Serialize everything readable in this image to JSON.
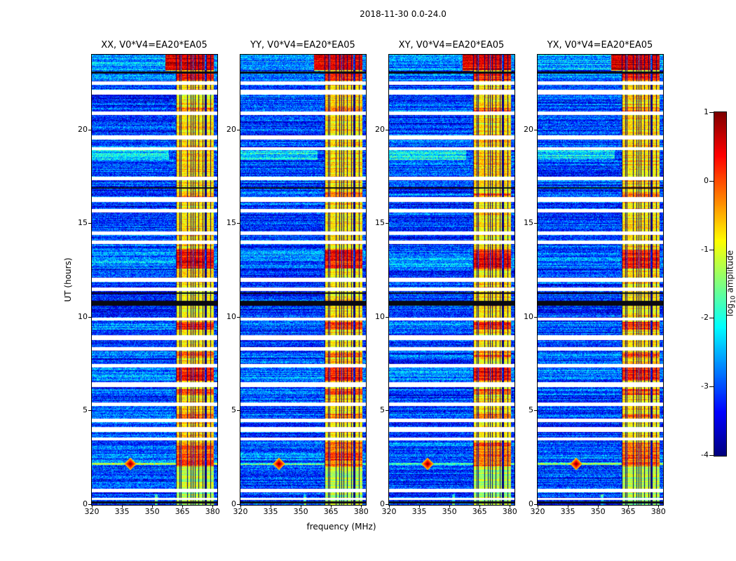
{
  "figure_title": "2018-11-30 0.0-24.0",
  "chart_data": {
    "type": "heatmap",
    "title": "2018-11-30 0.0-24.0",
    "xlabel": "frequency (MHz)",
    "ylabel": "UT (hours)",
    "x_range": [
      320,
      382
    ],
    "y_range": [
      0,
      24
    ],
    "x_ticks": [
      320,
      335,
      350,
      365,
      380
    ],
    "y_ticks": [
      0,
      5,
      10,
      15,
      20
    ],
    "grid": false,
    "colormap": "jet",
    "colorbar": {
      "label_prefix": "log",
      "label_sub": "10",
      "label_suffix": " amplitude",
      "ticks": [
        1,
        0,
        -1,
        -2,
        -3,
        -4
      ],
      "range": [
        -4,
        1
      ]
    },
    "panels": [
      {
        "label": "XX, V0*V4=EA20*EA05",
        "seed": 11
      },
      {
        "label": "YY, V0*V4=EA20*EA05",
        "seed": 37
      },
      {
        "label": "XY, V0*V4=EA20*EA05",
        "seed": 59
      },
      {
        "label": "YX, V0*V4=EA20*EA05",
        "seed": 83
      }
    ],
    "features": {
      "background_level": -3.1,
      "noise_sigma": 0.6,
      "row_noise": 0.5,
      "rfi_band": {
        "f_start": 361.5,
        "f_end": 380.5,
        "level": -0.75,
        "grid_spacing": 1.9,
        "grid_width": 0.32,
        "grid_depth": 5.0,
        "dark_lines": [
          364.3,
          370.2,
          376.2
        ],
        "low_time_cut": 2.0
      },
      "band_extend": {
        "t0": 23.15,
        "t1": 24.0,
        "f_start": 356.5
      },
      "bright_rows": [
        [
          23.2,
          24.0,
          1.2
        ],
        [
          22.65,
          23.0,
          0.9
        ],
        [
          20.95,
          21.2,
          0.5
        ],
        [
          16.35,
          16.65,
          0.5
        ],
        [
          12.6,
          13.6,
          1.0
        ],
        [
          9.35,
          9.75,
          0.85
        ],
        [
          7.9,
          8.15,
          0.5
        ],
        [
          6.6,
          7.35,
          0.9
        ],
        [
          5.85,
          6.15,
          0.7
        ],
        [
          4.55,
          4.85,
          0.45
        ],
        [
          2.05,
          3.3,
          0.6
        ]
      ],
      "flagged_times": [
        [
          22.5,
          0.09
        ],
        [
          22.0,
          0.13
        ],
        [
          20.9,
          0.09
        ],
        [
          19.6,
          0.13
        ],
        [
          19.0,
          0.09
        ],
        [
          17.4,
          0.09
        ],
        [
          16.3,
          0.13
        ],
        [
          15.7,
          0.09
        ],
        [
          14.5,
          0.09
        ],
        [
          14.0,
          0.09
        ],
        [
          12.0,
          0.13
        ],
        [
          11.5,
          0.09
        ],
        [
          9.9,
          0.09
        ],
        [
          8.9,
          0.13
        ],
        [
          8.3,
          0.09
        ],
        [
          7.4,
          0.09
        ],
        [
          6.4,
          0.13
        ],
        [
          5.35,
          0.09
        ],
        [
          4.5,
          0.09
        ],
        [
          4.0,
          0.13
        ],
        [
          3.5,
          0.09
        ],
        [
          0.75,
          0.09
        ],
        [
          0.3,
          0.07
        ]
      ],
      "black_rows": [
        [
          23.05,
          0.06
        ],
        [
          16.9,
          0.04
        ],
        [
          10.75,
          0.13
        ],
        [
          11.3,
          0.04
        ],
        [
          0.1,
          0.05
        ]
      ],
      "bg_bright_rows": [
        {
          "t0": 18.4,
          "t1": 18.95,
          "boost": 0.8,
          "f_max": 358
        },
        {
          "t0": 2.1,
          "t1": 2.24,
          "boost": 1.3,
          "f_max": 382
        }
      ],
      "streaks": [
        {
          "f": 352,
          "t0": 0.0,
          "t1": 0.55,
          "boost": 1.2
        }
      ],
      "transient": {
        "t": 2.17,
        "f": 339,
        "df": 2.5,
        "dt": 0.28,
        "peak": 1.0
      }
    }
  }
}
